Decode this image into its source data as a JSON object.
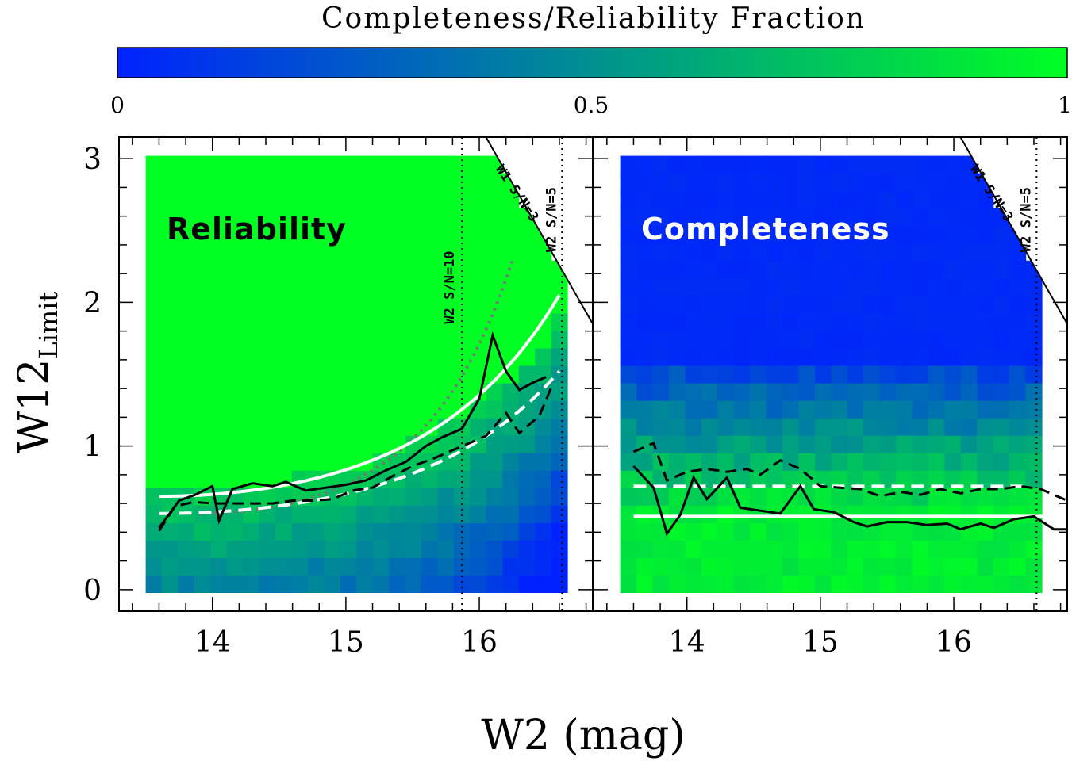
{
  "chart_data": {
    "type": "heatmap",
    "colorbar": {
      "title": "Completeness/Reliability Fraction",
      "ticks": [
        "0",
        "0.5",
        "1"
      ],
      "range": [
        0,
        1
      ],
      "colors": [
        "#0022ff",
        "#00ff22"
      ]
    },
    "xlabel": "W2 (mag)",
    "ylabel_main": "W12",
    "ylabel_sub": "Limit",
    "xlim": [
      13.3,
      16.85
    ],
    "ylim": [
      -0.15,
      3.15
    ],
    "x_tick_labels": [
      "14",
      "15",
      "16"
    ],
    "y_tick_labels": [
      "0",
      "1",
      "2",
      "3"
    ],
    "x_ticks": [
      14,
      15,
      16
    ],
    "y_ticks": [
      0,
      1,
      2,
      3
    ],
    "vlines": [
      {
        "x": 15.87,
        "label": "W2 S/N=10",
        "panel": "left"
      },
      {
        "x": 16.62,
        "label": "W2 S/N=5",
        "panels": "both"
      }
    ],
    "diag_label": "W1 S/N=3",
    "panels": [
      {
        "name": "Reliability",
        "label": "Reliability",
        "high_region": "above",
        "transition": [
          0.55,
          0.56,
          0.57,
          0.54,
          0.57,
          0.6,
          0.62,
          0.63,
          0.64,
          0.66,
          0.68,
          0.7,
          0.73,
          0.76,
          0.8,
          0.86,
          0.9,
          0.96,
          1.02,
          1.1,
          1.18,
          1.26,
          1.36,
          1.48,
          1.62,
          1.78
        ],
        "solid_black": [
          [
            13.6,
            0.43
          ],
          [
            13.75,
            0.62
          ],
          [
            13.87,
            0.66
          ],
          [
            14.0,
            0.72
          ],
          [
            14.05,
            0.48
          ],
          [
            14.15,
            0.7
          ],
          [
            14.3,
            0.74
          ],
          [
            14.45,
            0.72
          ],
          [
            14.55,
            0.75
          ],
          [
            14.7,
            0.69
          ],
          [
            14.85,
            0.71
          ],
          [
            15.0,
            0.73
          ],
          [
            15.15,
            0.76
          ],
          [
            15.3,
            0.83
          ],
          [
            15.45,
            0.89
          ],
          [
            15.6,
            1.0
          ],
          [
            15.72,
            1.06
          ],
          [
            15.87,
            1.12
          ],
          [
            16.0,
            1.33
          ],
          [
            16.1,
            1.77
          ],
          [
            16.2,
            1.52
          ],
          [
            16.3,
            1.39
          ],
          [
            16.4,
            1.44
          ],
          [
            16.5,
            1.48
          ]
        ],
        "dashed_black": [
          [
            13.6,
            0.41
          ],
          [
            13.72,
            0.58
          ],
          [
            13.86,
            0.61
          ],
          [
            14.0,
            0.6
          ],
          [
            14.15,
            0.6
          ],
          [
            14.3,
            0.6
          ],
          [
            14.45,
            0.6
          ],
          [
            14.6,
            0.62
          ],
          [
            14.75,
            0.62
          ],
          [
            14.9,
            0.63
          ],
          [
            15.05,
            0.69
          ],
          [
            15.2,
            0.71
          ],
          [
            15.35,
            0.79
          ],
          [
            15.5,
            0.86
          ],
          [
            15.65,
            0.91
          ],
          [
            15.8,
            0.97
          ],
          [
            15.95,
            1.03
          ],
          [
            16.05,
            1.07
          ],
          [
            16.2,
            1.23
          ],
          [
            16.3,
            1.09
          ],
          [
            16.45,
            1.21
          ],
          [
            16.55,
            1.43
          ]
        ],
        "solid_white_fit": {
          "type": "exp",
          "a": 0.65,
          "x0": 13.6,
          "xend": 16.6,
          "y_end": 2.05
        },
        "dashed_white_fit": {
          "type": "exp",
          "a": 0.53,
          "x0": 13.6,
          "xend": 16.6,
          "y_end": 1.52
        },
        "dotted_gray_fit": {
          "x0": 13.9,
          "xend": 16.25,
          "y_end": 2.3
        }
      },
      {
        "name": "Completeness",
        "label": "Completeness",
        "high_region": "below",
        "solid_black": [
          [
            13.6,
            0.86
          ],
          [
            13.75,
            0.71
          ],
          [
            13.85,
            0.39
          ],
          [
            13.95,
            0.52
          ],
          [
            14.05,
            0.78
          ],
          [
            14.15,
            0.63
          ],
          [
            14.3,
            0.78
          ],
          [
            14.4,
            0.57
          ],
          [
            14.55,
            0.55
          ],
          [
            14.7,
            0.53
          ],
          [
            14.85,
            0.72
          ],
          [
            14.95,
            0.56
          ],
          [
            15.1,
            0.54
          ],
          [
            15.25,
            0.47
          ],
          [
            15.35,
            0.44
          ],
          [
            15.5,
            0.47
          ],
          [
            15.65,
            0.47
          ],
          [
            15.8,
            0.45
          ],
          [
            15.95,
            0.46
          ],
          [
            16.05,
            0.42
          ],
          [
            16.2,
            0.46
          ],
          [
            16.3,
            0.43
          ],
          [
            16.45,
            0.49
          ],
          [
            16.6,
            0.51
          ],
          [
            16.75,
            0.42
          ],
          [
            16.85,
            0.42
          ]
        ],
        "dashed_black": [
          [
            13.6,
            0.96
          ],
          [
            13.75,
            1.02
          ],
          [
            13.85,
            0.76
          ],
          [
            14.0,
            0.82
          ],
          [
            14.15,
            0.84
          ],
          [
            14.3,
            0.82
          ],
          [
            14.45,
            0.84
          ],
          [
            14.55,
            0.8
          ],
          [
            14.7,
            0.9
          ],
          [
            14.85,
            0.84
          ],
          [
            15.0,
            0.72
          ],
          [
            15.15,
            0.71
          ],
          [
            15.3,
            0.7
          ],
          [
            15.45,
            0.65
          ],
          [
            15.6,
            0.68
          ],
          [
            15.75,
            0.66
          ],
          [
            15.9,
            0.7
          ],
          [
            16.05,
            0.67
          ],
          [
            16.2,
            0.7
          ],
          [
            16.35,
            0.7
          ],
          [
            16.5,
            0.72
          ],
          [
            16.65,
            0.7
          ],
          [
            16.85,
            0.62
          ]
        ],
        "solid_white_level": 0.51,
        "dashed_white_level": 0.72
      }
    ]
  }
}
